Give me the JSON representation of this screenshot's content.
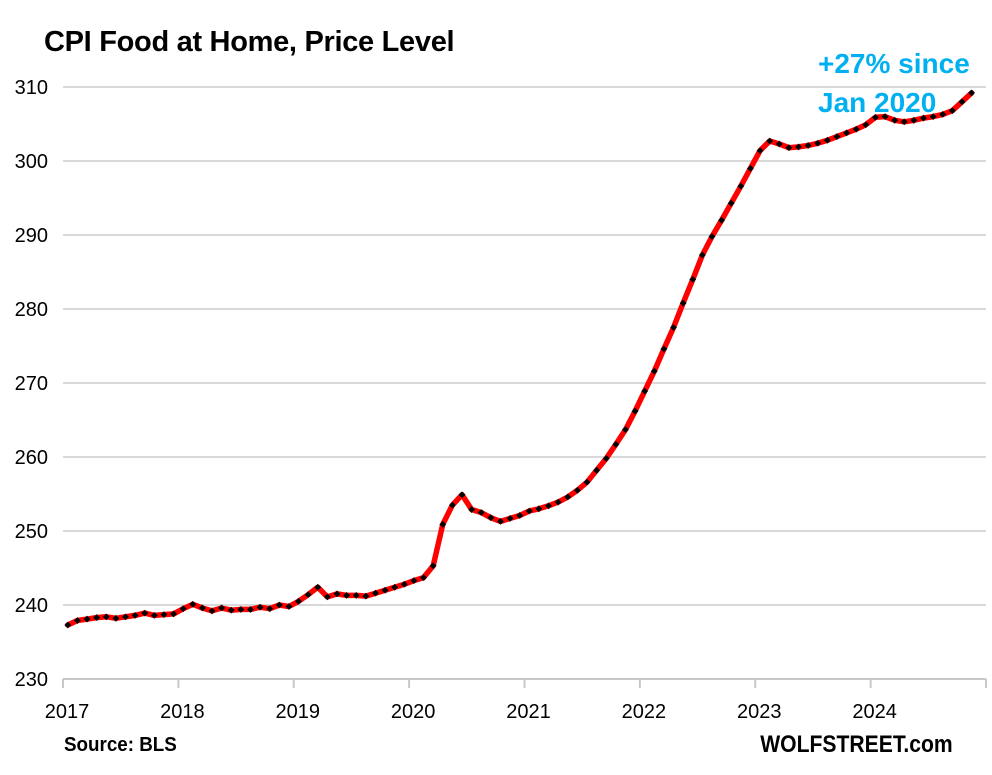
{
  "chart": {
    "title": "CPI Food at Home, Price Level",
    "annotation": {
      "line1": "+27% since",
      "line2": "Jan 2020",
      "color": "#00B0F0"
    },
    "source": "Source: BLS",
    "branding": "WOLFSTREET.com"
  },
  "chart_data": {
    "type": "line",
    "series_name": "CPI Food at Home price index",
    "frequency": "monthly",
    "start_month": "2017-01",
    "end_month": "2024-11",
    "values": [
      237.3,
      237.9,
      238.1,
      238.3,
      238.4,
      238.2,
      238.4,
      238.6,
      238.9,
      238.6,
      238.7,
      238.8,
      239.5,
      240.1,
      239.6,
      239.2,
      239.6,
      239.3,
      239.4,
      239.4,
      239.7,
      239.5,
      240.0,
      239.8,
      240.5,
      241.4,
      242.4,
      241.1,
      241.5,
      241.3,
      241.3,
      241.2,
      241.6,
      242.0,
      242.4,
      242.8,
      243.3,
      243.7,
      245.3,
      250.9,
      253.5,
      254.9,
      252.9,
      252.5,
      251.8,
      251.3,
      251.7,
      252.1,
      252.7,
      253.0,
      253.4,
      253.9,
      254.6,
      255.5,
      256.6,
      258.2,
      259.8,
      261.7,
      263.7,
      266.2,
      268.9,
      271.6,
      274.6,
      277.5,
      280.8,
      284.0,
      287.3,
      289.8,
      292.0,
      294.3,
      296.6,
      299.0,
      301.4,
      302.7,
      302.3,
      301.8,
      301.9,
      302.1,
      302.4,
      302.8,
      303.3,
      303.8,
      304.3,
      304.9,
      305.9,
      306.0,
      305.5,
      305.3,
      305.5,
      305.8,
      306.0,
      306.3,
      306.8,
      308.0,
      309.2
    ],
    "x_tick_labels": [
      "2017",
      "2018",
      "2019",
      "2020",
      "2021",
      "2022",
      "2023",
      "2024"
    ],
    "y_ticks": [
      230,
      240,
      250,
      260,
      270,
      280,
      290,
      300,
      310
    ],
    "ylim": [
      230,
      310
    ],
    "xlabel": "",
    "ylabel": "",
    "grid": true,
    "legend": "none",
    "line_color": "#FF0000",
    "marker_color": "#000000",
    "marker_shape": "diamond",
    "grid_color": "#D9D9D9",
    "axis_color": "#C8C8C8",
    "tick_label_color": "#000000"
  }
}
